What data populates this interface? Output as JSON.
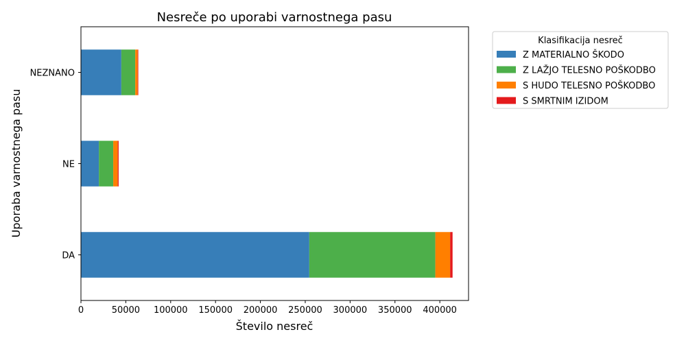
{
  "chart_data": {
    "type": "bar",
    "orientation": "horizontal",
    "stacked": true,
    "title": "Nesreče po uporabi varnostnega pasu",
    "xlabel": "Število nesreč",
    "ylabel": "Uporaba varnostnega pasu",
    "categories": [
      "DA",
      "NE",
      "NEZNANO"
    ],
    "xlim": [
      0,
      432000
    ],
    "xticks": [
      0,
      50000,
      100000,
      150000,
      200000,
      250000,
      300000,
      350000,
      400000
    ],
    "xtick_labels": [
      "0",
      "50000",
      "100000",
      "150000",
      "200000",
      "250000",
      "300000",
      "350000",
      "400000"
    ],
    "grid": false,
    "legend": {
      "title": "Klasifikacija nesreč",
      "placement": "outside-right-top"
    },
    "series": [
      {
        "name": "Z MATERIALNO ŠKODO",
        "color": "#377eb8",
        "values": [
          254500,
          20000,
          45000
        ]
      },
      {
        "name": "Z LAŽJO TELESNO POŠKODBO",
        "color": "#4daf4a",
        "values": [
          140500,
          16000,
          15500
        ]
      },
      {
        "name": "S HUDO TELESNO POŠKODBO",
        "color": "#ff7f00",
        "values": [
          16500,
          5000,
          2700
        ]
      },
      {
        "name": "S SMRTNIM IZIDOM",
        "color": "#e41a1c",
        "values": [
          2700,
          1000,
          700
        ]
      }
    ]
  }
}
